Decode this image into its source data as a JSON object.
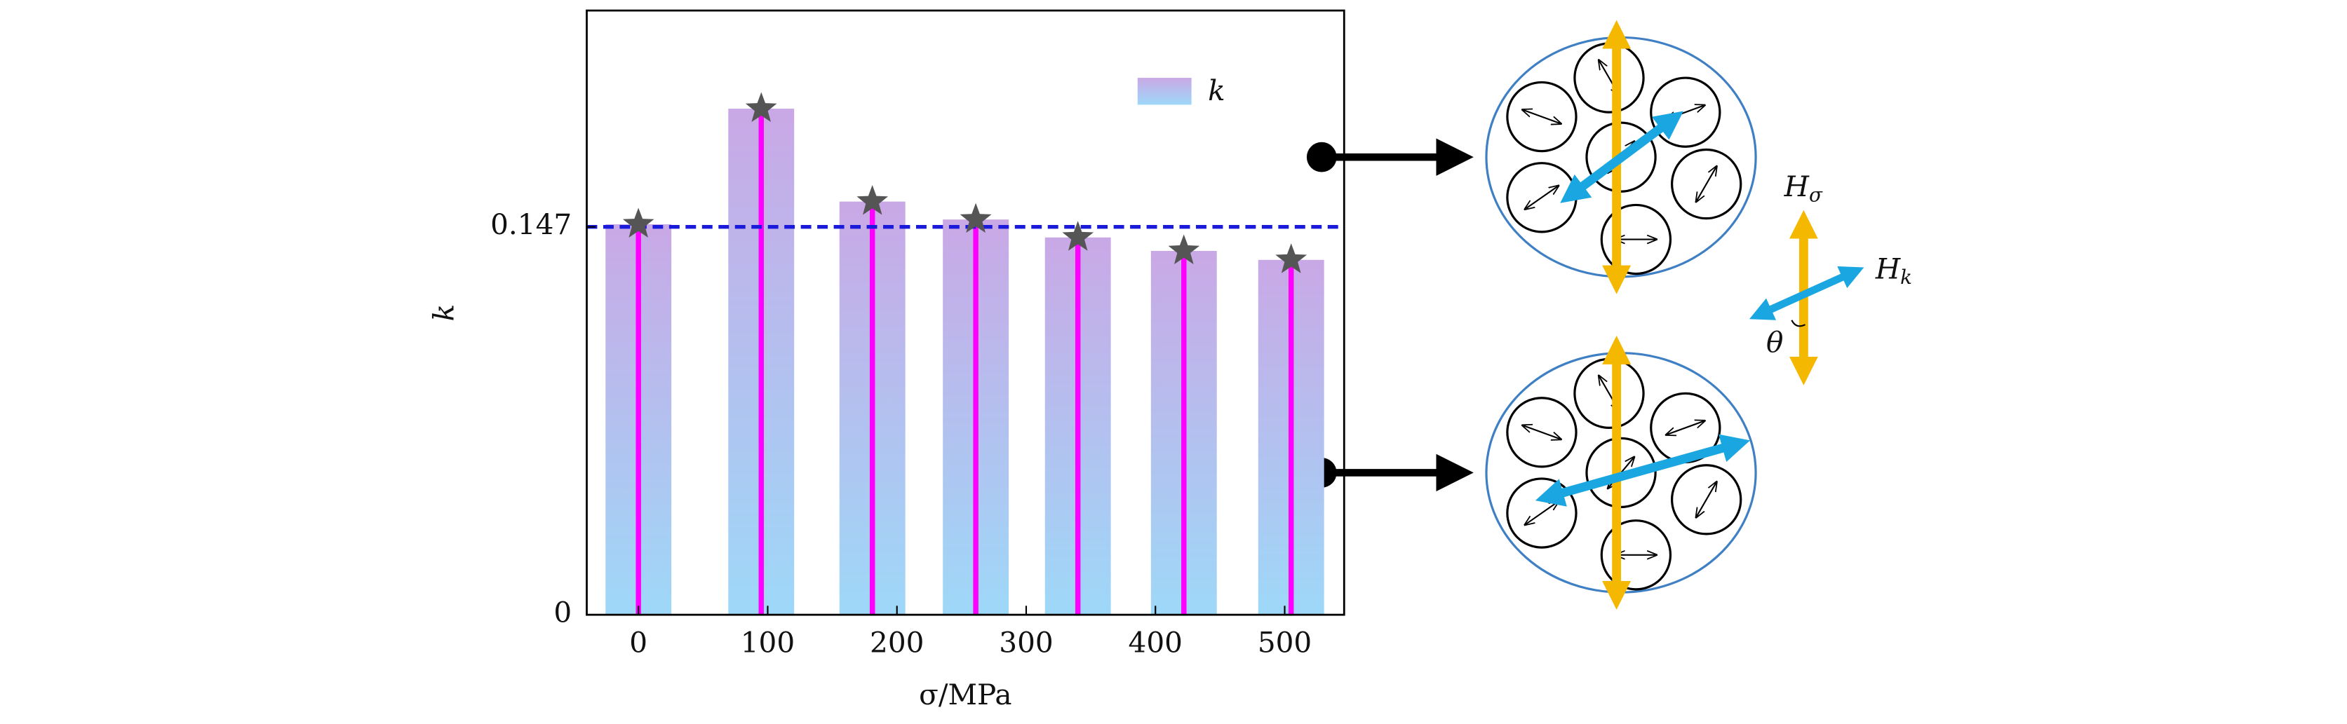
{
  "chart_data": {
    "type": "bar",
    "x": [
      0,
      95,
      181,
      261,
      340,
      422,
      505
    ],
    "values": [
      0.148,
      0.1918,
      0.1566,
      0.1498,
      0.143,
      0.1379,
      0.1345
    ],
    "legend_label": "k",
    "xlabel": "σ/MPa",
    "ylabel": "k",
    "xlim": [
      -40,
      546
    ],
    "xticks": [
      0,
      100,
      200,
      300,
      400,
      500
    ],
    "ylim": [
      0,
      0.229
    ],
    "yticks": [
      0,
      0.147
    ],
    "reference_line": 0.147,
    "colors": {
      "bar_top": "#c9a8e6",
      "bar_bottom": "#9ed8f8",
      "stem": "#ff00ff",
      "marker": "#555555",
      "reference_line": "#1a1adb"
    },
    "legend": "upper right",
    "diagram_labels": [
      {
        "main": "H",
        "sub": "σ"
      },
      {
        "main": "H",
        "sub": "k"
      },
      {
        "main": "θ"
      }
    ]
  }
}
